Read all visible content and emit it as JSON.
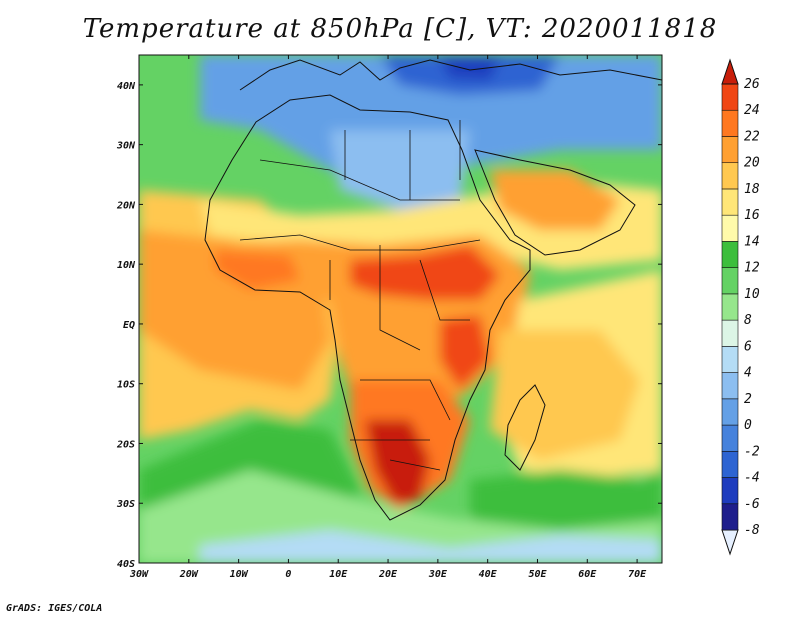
{
  "title": "Temperature at 850hPa [C], VT: 2020011818",
  "footer": "GrADS: IGES/COLA",
  "map": {
    "lon_labels": [
      "30W",
      "20W",
      "10W",
      "0",
      "10E",
      "20E",
      "30E",
      "40E",
      "50E",
      "60E",
      "70E"
    ],
    "lon_values": [
      -30,
      -20,
      -10,
      0,
      10,
      20,
      30,
      40,
      50,
      60,
      70
    ],
    "lat_labels": [
      "40N",
      "30N",
      "20N",
      "10N",
      "EQ",
      "10S",
      "20S",
      "30S",
      "40S"
    ],
    "lat_values": [
      40,
      30,
      20,
      10,
      0,
      -10,
      -20,
      -30,
      -40
    ],
    "lon_range": [
      -30,
      75
    ],
    "lat_range": [
      -40,
      45
    ]
  },
  "colorbar": {
    "labels": [
      "26",
      "24",
      "22",
      "20",
      "18",
      "16",
      "14",
      "12",
      "10",
      "8",
      "6",
      "4",
      "2",
      "0",
      "-2",
      "-4",
      "-6",
      "-8"
    ],
    "colors": [
      "#e6f0ff",
      "#1e1e8c",
      "#1e3cbe",
      "#2d64d2",
      "#4682dc",
      "#64a0e6",
      "#8cbef0",
      "#b4dcf5",
      "#dcf5e6",
      "#96e68c",
      "#64d264",
      "#3cbe3c",
      "#fffaaa",
      "#ffe678",
      "#ffc850",
      "#ffa032",
      "#ff7820",
      "#f04614",
      "#c81e0a"
    ]
  }
}
